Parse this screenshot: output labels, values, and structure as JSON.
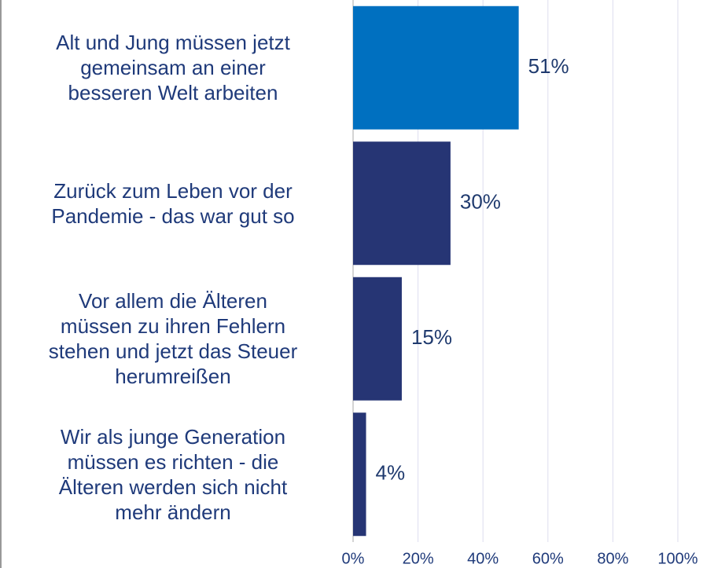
{
  "chart_data": {
    "type": "barh",
    "categories": [
      "Alt und Jung müssen jetzt\ngemeinsam an einer\nbesseren Welt arbeiten",
      "Zurück zum Leben vor der\nPandemie - das war gut so",
      "Vor allem die Älteren\nmüssen zu ihren Fehlern\nstehen und jetzt das Steuer\nherumreißen",
      "Wir als junge Generation\nmüssen es richten - die\nÄlteren werden sich nicht\nmehr ändern"
    ],
    "values": [
      51,
      30,
      15,
      4
    ],
    "value_labels": [
      "51%",
      "30%",
      "15%",
      "4%"
    ],
    "colors": [
      "#0070c0",
      "#263574",
      "#263574",
      "#263574"
    ],
    "xlim": [
      0,
      100
    ],
    "xticks": [
      {
        "value": 0,
        "label": "0%"
      },
      {
        "value": 20,
        "label": "20%"
      },
      {
        "value": 40,
        "label": "40%"
      },
      {
        "value": 60,
        "label": "60%"
      },
      {
        "value": 80,
        "label": "80%"
      },
      {
        "value": 100,
        "label": "100%"
      }
    ],
    "grid": true
  }
}
